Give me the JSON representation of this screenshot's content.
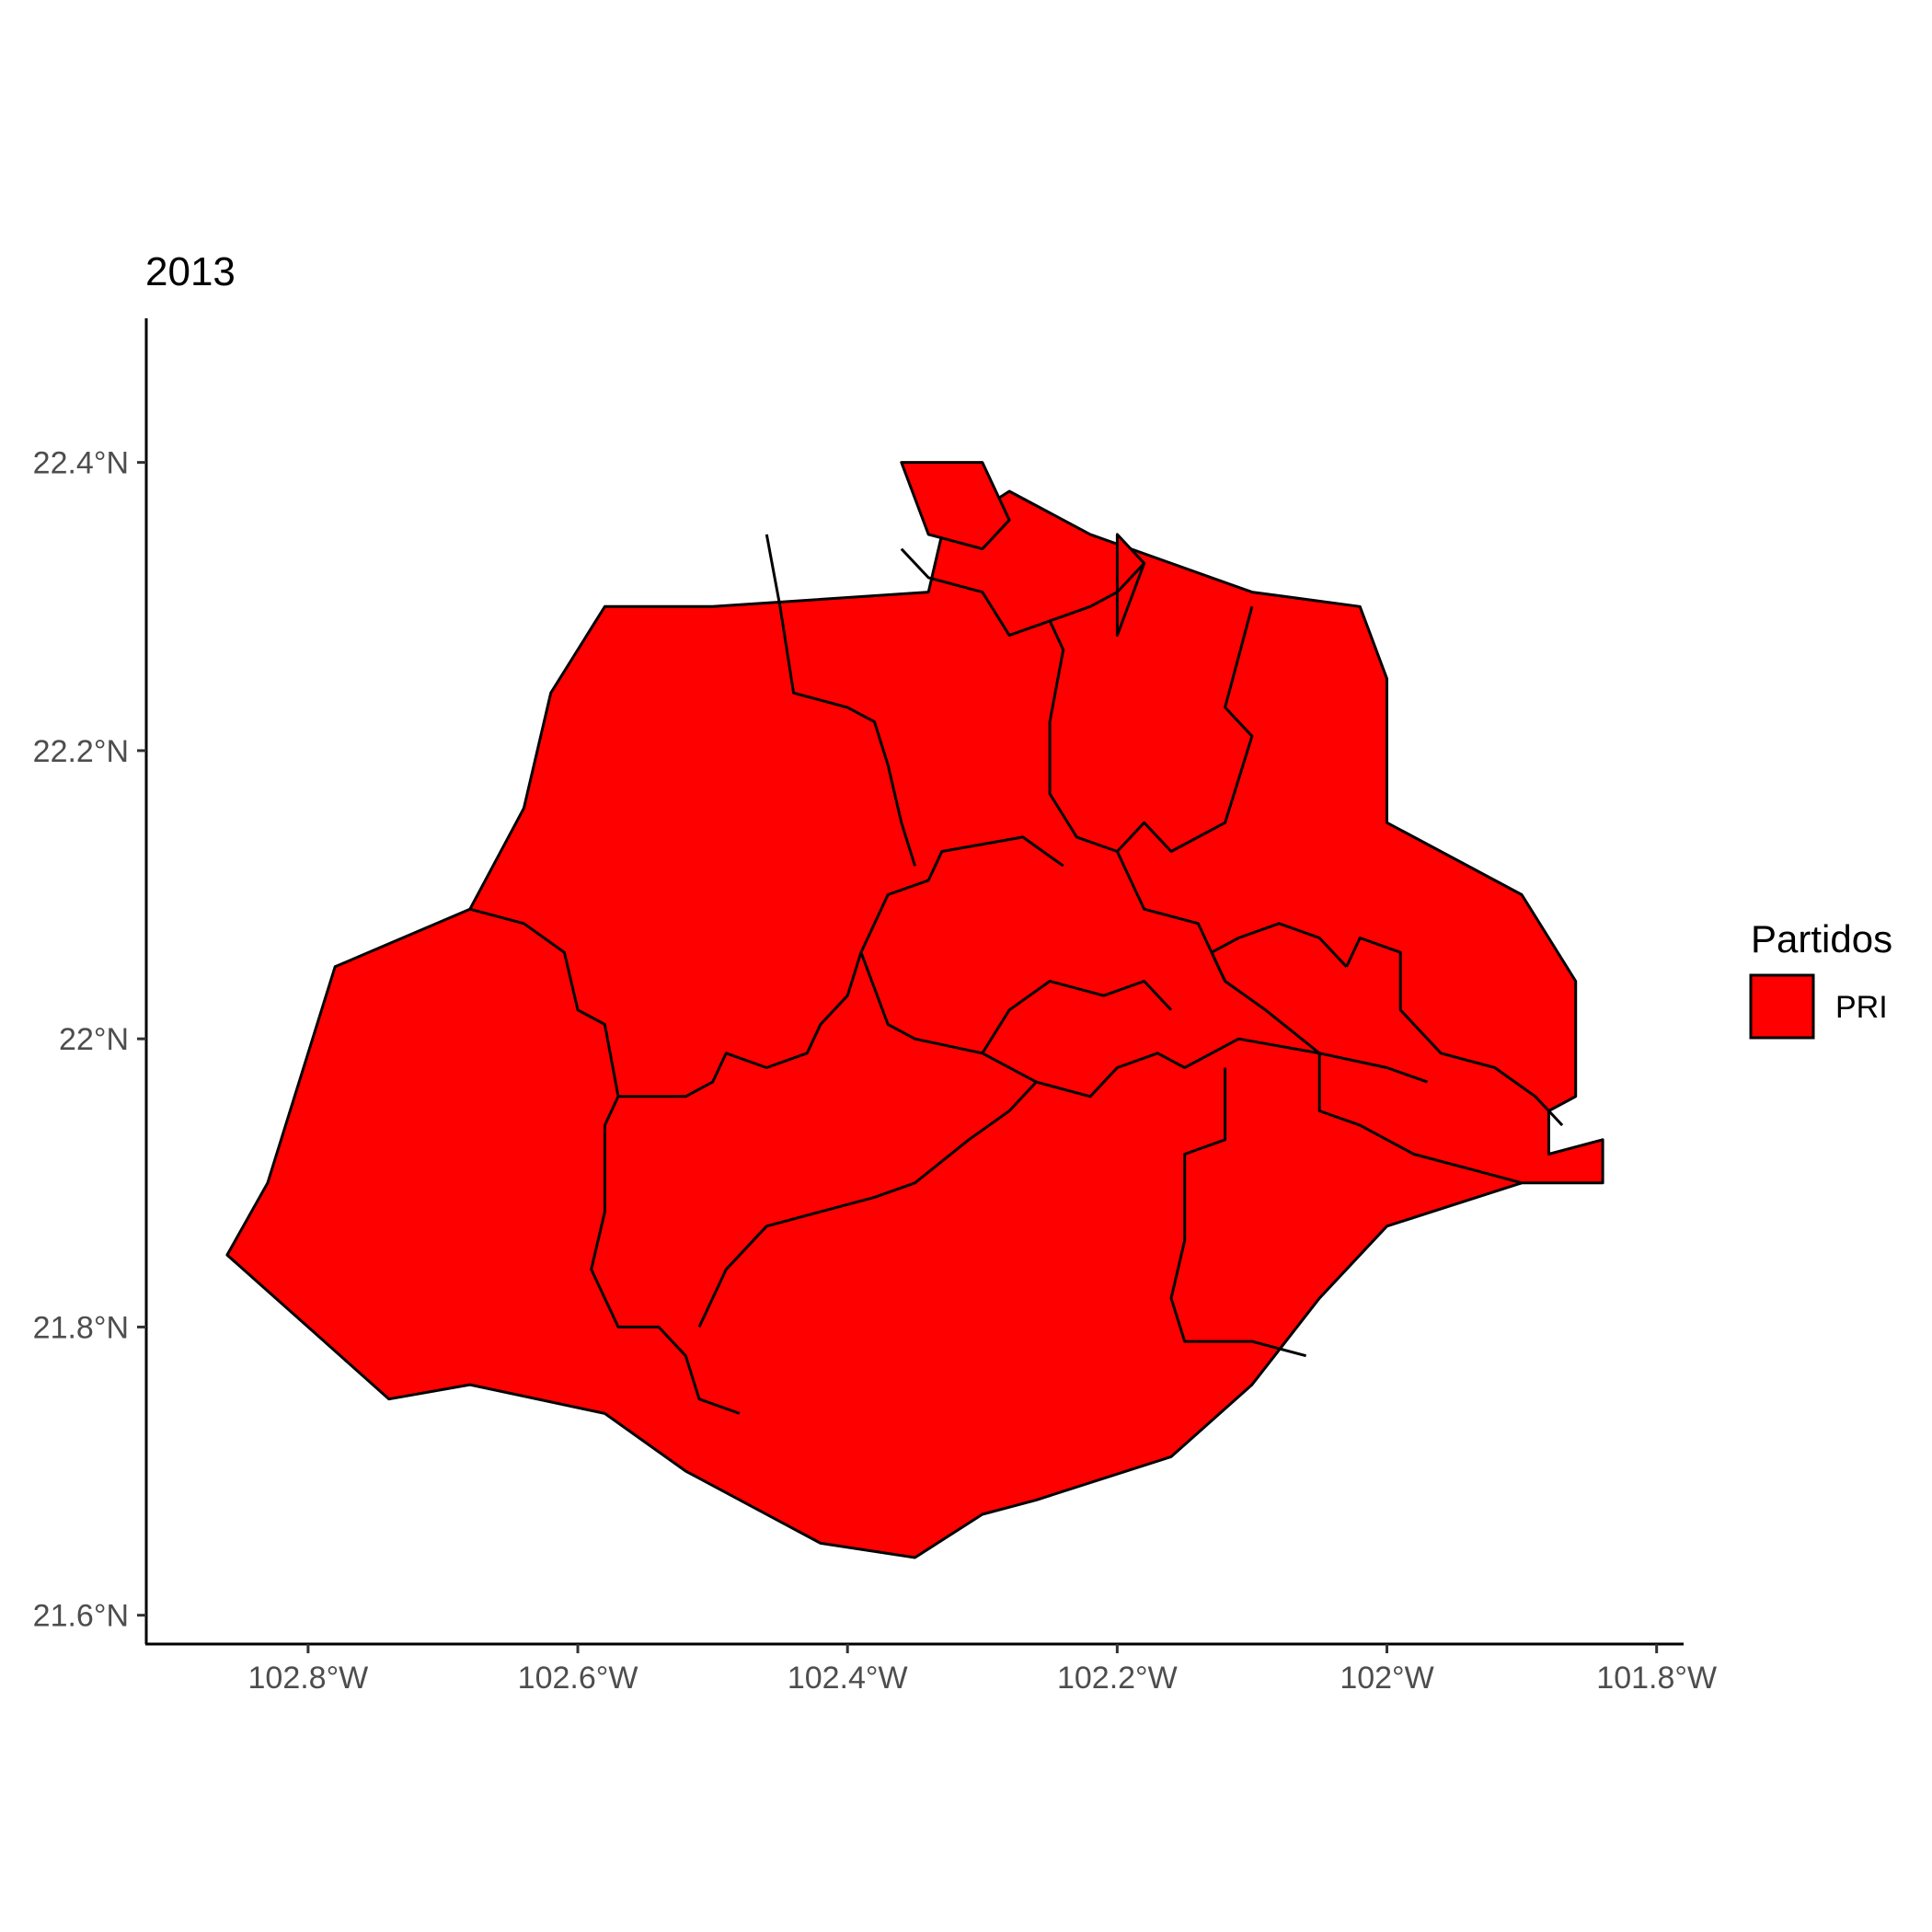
{
  "chart_data": {
    "type": "choropleth",
    "title": "2013",
    "x_axis": {
      "ticks": [
        -102.8,
        -102.6,
        -102.4,
        -102.2,
        -102.0,
        -101.8
      ],
      "tick_labels": [
        "102.8°W",
        "102.6°W",
        "102.4°W",
        "102.2°W",
        "102°W",
        "101.8°W"
      ],
      "range": [
        -102.92,
        -101.78
      ]
    },
    "y_axis": {
      "ticks": [
        21.6,
        21.8,
        22.0,
        22.2,
        22.4
      ],
      "tick_labels": [
        "21.6°N",
        "21.8°N",
        "22°N",
        "22.2°N",
        "22.4°N"
      ],
      "range": [
        21.58,
        22.5
      ]
    },
    "grid": false,
    "legend": {
      "title": "Partidos",
      "placement": "right",
      "entries": [
        {
          "label": "PRI",
          "color": "#ff0000"
        }
      ]
    },
    "regions": [
      {
        "party": "PRI",
        "coords": [
          [
            -102.5,
            22.3
          ],
          [
            -102.34,
            22.31
          ],
          [
            -102.33,
            22.35
          ],
          [
            -102.28,
            22.38
          ],
          [
            -102.22,
            22.35
          ],
          [
            -102.1,
            22.31
          ],
          [
            -102.02,
            22.3
          ],
          [
            -102.0,
            22.25
          ],
          [
            -102.0,
            22.15
          ],
          [
            -101.9,
            22.1
          ],
          [
            -101.86,
            22.04
          ],
          [
            -101.86,
            21.96
          ],
          [
            -101.88,
            21.95
          ],
          [
            -101.88,
            21.92
          ],
          [
            -101.84,
            21.93
          ],
          [
            -101.84,
            21.9
          ],
          [
            -101.9,
            21.9
          ],
          [
            -102.0,
            21.87
          ],
          [
            -102.05,
            21.82
          ],
          [
            -102.1,
            21.76
          ],
          [
            -102.16,
            21.71
          ],
          [
            -102.26,
            21.68
          ],
          [
            -102.3,
            21.67
          ],
          [
            -102.35,
            21.64
          ],
          [
            -102.42,
            21.65
          ],
          [
            -102.52,
            21.7
          ],
          [
            -102.58,
            21.74
          ],
          [
            -102.68,
            21.76
          ],
          [
            -102.74,
            21.75
          ],
          [
            -102.8,
            21.8
          ],
          [
            -102.86,
            21.85
          ],
          [
            -102.83,
            21.9
          ],
          [
            -102.78,
            22.05
          ],
          [
            -102.68,
            22.09
          ],
          [
            -102.64,
            22.16
          ],
          [
            -102.62,
            22.24
          ],
          [
            -102.58,
            22.3
          ]
        ]
      },
      {
        "party": "PRI",
        "coords": [
          [
            -102.36,
            22.4
          ],
          [
            -102.3,
            22.4
          ],
          [
            -102.28,
            22.36
          ],
          [
            -102.3,
            22.34
          ],
          [
            -102.34,
            22.35
          ]
        ]
      },
      {
        "party": "PRI",
        "coords": [
          [
            -102.18,
            22.33
          ],
          [
            -102.2,
            22.28
          ],
          [
            -102.2,
            22.35
          ]
        ]
      }
    ],
    "boundaries": [
      [
        [
          -102.68,
          22.09
        ],
        [
          -102.64,
          22.08
        ],
        [
          -102.61,
          22.06
        ],
        [
          -102.6,
          22.02
        ],
        [
          -102.58,
          22.01
        ],
        [
          -102.57,
          21.96
        ],
        [
          -102.58,
          21.94
        ],
        [
          -102.58,
          21.88
        ],
        [
          -102.59,
          21.84
        ],
        [
          -102.57,
          21.8
        ],
        [
          -102.54,
          21.8
        ],
        [
          -102.52,
          21.78
        ],
        [
          -102.51,
          21.75
        ],
        [
          -102.48,
          21.74
        ]
      ],
      [
        [
          -102.57,
          21.96
        ],
        [
          -102.52,
          21.96
        ],
        [
          -102.5,
          21.97
        ],
        [
          -102.49,
          21.99
        ],
        [
          -102.46,
          21.98
        ],
        [
          -102.43,
          21.99
        ],
        [
          -102.42,
          22.01
        ],
        [
          -102.4,
          22.03
        ],
        [
          -102.39,
          22.06
        ],
        [
          -102.37,
          22.1
        ],
        [
          -102.34,
          22.11
        ],
        [
          -102.33,
          22.13
        ],
        [
          -102.27,
          22.14
        ],
        [
          -102.24,
          22.12
        ]
      ],
      [
        [
          -102.46,
          22.35
        ],
        [
          -102.45,
          22.3
        ],
        [
          -102.44,
          22.24
        ],
        [
          -102.4,
          22.23
        ],
        [
          -102.38,
          22.22
        ],
        [
          -102.37,
          22.19
        ],
        [
          -102.36,
          22.15
        ],
        [
          -102.35,
          22.12
        ]
      ],
      [
        [
          -102.36,
          22.34
        ],
        [
          -102.34,
          22.32
        ],
        [
          -102.3,
          22.31
        ],
        [
          -102.28,
          22.28
        ],
        [
          -102.25,
          22.29
        ],
        [
          -102.24,
          22.27
        ],
        [
          -102.25,
          22.22
        ],
        [
          -102.25,
          22.17
        ],
        [
          -102.23,
          22.14
        ],
        [
          -102.2,
          22.13
        ],
        [
          -102.19,
          22.11
        ]
      ],
      [
        [
          -102.25,
          22.29
        ],
        [
          -102.22,
          22.3
        ],
        [
          -102.2,
          22.31
        ],
        [
          -102.18,
          22.33
        ]
      ],
      [
        [
          -102.1,
          22.3
        ],
        [
          -102.12,
          22.23
        ],
        [
          -102.1,
          22.21
        ],
        [
          -102.12,
          22.15
        ],
        [
          -102.16,
          22.13
        ],
        [
          -102.18,
          22.15
        ],
        [
          -102.2,
          22.13
        ]
      ],
      [
        [
          -102.19,
          22.11
        ],
        [
          -102.18,
          22.09
        ],
        [
          -102.14,
          22.08
        ],
        [
          -102.12,
          22.04
        ],
        [
          -102.09,
          22.02
        ],
        [
          -102.05,
          21.99
        ]
      ],
      [
        [
          -102.39,
          22.06
        ],
        [
          -102.37,
          22.01
        ],
        [
          -102.35,
          22.0
        ],
        [
          -102.3,
          21.99
        ],
        [
          -102.26,
          21.97
        ],
        [
          -102.28,
          21.95
        ],
        [
          -102.31,
          21.93
        ],
        [
          -102.35,
          21.9
        ],
        [
          -102.38,
          21.89
        ],
        [
          -102.42,
          21.88
        ],
        [
          -102.46,
          21.87
        ],
        [
          -102.49,
          21.84
        ],
        [
          -102.51,
          21.8
        ]
      ],
      [
        [
          -102.3,
          21.99
        ],
        [
          -102.28,
          22.02
        ],
        [
          -102.25,
          22.04
        ],
        [
          -102.21,
          22.03
        ],
        [
          -102.18,
          22.04
        ],
        [
          -102.16,
          22.02
        ]
      ],
      [
        [
          -102.26,
          21.97
        ],
        [
          -102.22,
          21.96
        ],
        [
          -102.2,
          21.98
        ],
        [
          -102.17,
          21.99
        ],
        [
          -102.15,
          21.98
        ],
        [
          -102.11,
          22.0
        ],
        [
          -102.05,
          21.99
        ],
        [
          -102.0,
          21.98
        ],
        [
          -101.97,
          21.97
        ]
      ],
      [
        [
          -102.12,
          21.98
        ],
        [
          -102.12,
          21.93
        ],
        [
          -102.15,
          21.92
        ],
        [
          -102.15,
          21.86
        ],
        [
          -102.16,
          21.82
        ],
        [
          -102.15,
          21.79
        ],
        [
          -102.1,
          21.79
        ],
        [
          -102.06,
          21.78
        ]
      ],
      [
        [
          -102.05,
          21.99
        ],
        [
          -102.05,
          21.95
        ],
        [
          -102.02,
          21.94
        ],
        [
          -101.98,
          21.92
        ],
        [
          -101.94,
          21.91
        ],
        [
          -101.9,
          21.9
        ]
      ],
      [
        [
          -102.03,
          22.05
        ],
        [
          -102.02,
          22.07
        ],
        [
          -101.99,
          22.06
        ],
        [
          -101.99,
          22.02
        ],
        [
          -101.96,
          21.99
        ],
        [
          -101.92,
          21.98
        ],
        [
          -101.89,
          21.96
        ],
        [
          -101.87,
          21.94
        ]
      ],
      [
        [
          -102.12,
          22.04
        ],
        [
          -102.13,
          22.06
        ],
        [
          -102.11,
          22.07
        ],
        [
          -102.08,
          22.08
        ],
        [
          -102.05,
          22.07
        ],
        [
          -102.03,
          22.05
        ]
      ]
    ]
  }
}
